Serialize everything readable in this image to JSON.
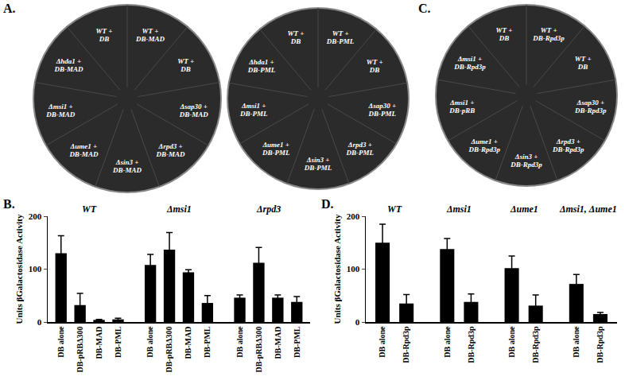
{
  "panels": [
    {
      "label": "A.",
      "plates": [
        {
          "sectors": [
            "WT + DB",
            "WT + DB-MAD",
            "WT + DB",
            "Δsap30 + DB-MAD",
            "Δrpd3 + DB-MAD",
            "Δsin3 + DB-MAD",
            "Δume1 + DB-MAD",
            "Δmsi1 + DB-MAD",
            "Δhda1 + DB-MAD"
          ]
        },
        {
          "sectors": [
            "WT + DB",
            "WT + DB-PML",
            "WT + DB",
            "Δsap30 + DB-PML",
            "Δrpd3 + DB-PML",
            "Δsin3 + DB-PML",
            "Δume1 + DB-PML",
            "Δmsi1 + DB-PML",
            "Δhda1 + DB-PML"
          ]
        }
      ]
    },
    {
      "label": "C.",
      "plates": [
        {
          "sectors": [
            "WT + DB",
            "WT + DB-Rpd3p",
            "WT + DB",
            "Δsap30 + DB-Rpd3p",
            "Δrpd3 + DB-Rpd3p",
            "Δsin3 + DB-Rpd3p",
            "Δume1 + DB-Rpd3p",
            "Δmsi1 + DB-pRB",
            "Δmsi1 + DB-Rpd3p"
          ]
        }
      ]
    }
  ],
  "chart_data": [
    {
      "panel": "B.",
      "type": "bar",
      "ylabel": "Units βGalactosidase Activity",
      "groups": [
        "WT",
        "Δmsi1",
        "Δrpd3"
      ],
      "categories": [
        "DB alone",
        "DB-pRBΔ300",
        "DB-MAD",
        "DB-PML",
        "DB alone",
        "DB-pRBΔ300",
        "DB-MAD",
        "DB-PML",
        "DB alone",
        "DB-pRBΔ300",
        "DB-MAD",
        "DB-PML"
      ],
      "values": [
        130,
        32,
        4,
        5,
        108,
        137,
        94,
        36,
        46,
        112,
        46,
        38
      ],
      "errors": [
        33,
        22,
        1,
        2,
        20,
        32,
        5,
        14,
        5,
        29,
        5,
        10
      ],
      "color": "#000000",
      "ylim": [
        0,
        200
      ],
      "yticks": [
        0,
        100,
        200
      ],
      "grid": false
    },
    {
      "panel": "D.",
      "type": "bar",
      "ylabel": "Units βGalactosidase Activity",
      "groups": [
        "WT",
        "Δmsi1",
        "Δume1",
        "Δmsi1, Δume1"
      ],
      "categories": [
        "DB alone",
        "DB-Rpd3p",
        "DB alone",
        "DB-Rpd3p",
        "DB alone",
        "DB-Rpd3p",
        "DB alone",
        "DB-Rpd3p"
      ],
      "values": [
        150,
        35,
        138,
        38,
        102,
        31,
        72,
        15
      ],
      "errors": [
        35,
        17,
        20,
        15,
        23,
        20,
        18,
        3
      ],
      "color": "#000000",
      "ylim": [
        0,
        200
      ],
      "yticks": [
        0,
        100,
        200
      ],
      "grid": false
    }
  ]
}
